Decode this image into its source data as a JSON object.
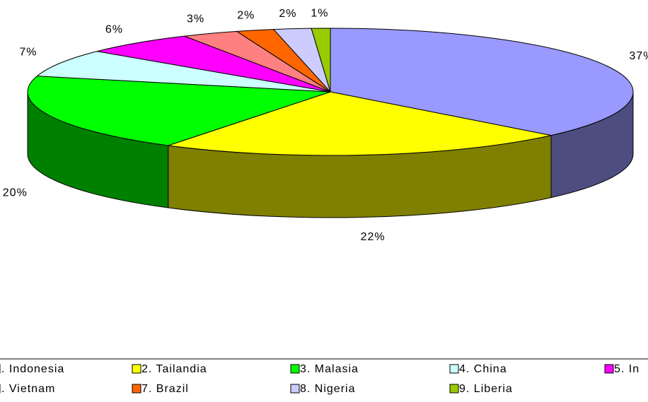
{
  "chart_data": {
    "type": "pie3d",
    "categories": [
      ". Indonesia",
      "2. Tailandia",
      "3. Malasia",
      "4. China",
      "5. In",
      ". Vietnam",
      "7. Brazil",
      "8. Nigeria",
      "9. Liberia"
    ],
    "values": [
      37,
      22,
      20,
      7,
      6,
      3,
      2,
      2,
      1
    ],
    "value_labels": [
      "37%",
      "22%",
      "20%",
      "7%",
      "6%",
      "3%",
      "2%",
      "2%",
      "1%"
    ],
    "colors": [
      "#9999ff",
      "#ffff00",
      "#00ff00",
      "#ccffff",
      "#ff00ff",
      "#ff8080",
      "#ff6600",
      "#ccccff",
      "#99cc00"
    ],
    "legend": "bottom"
  }
}
